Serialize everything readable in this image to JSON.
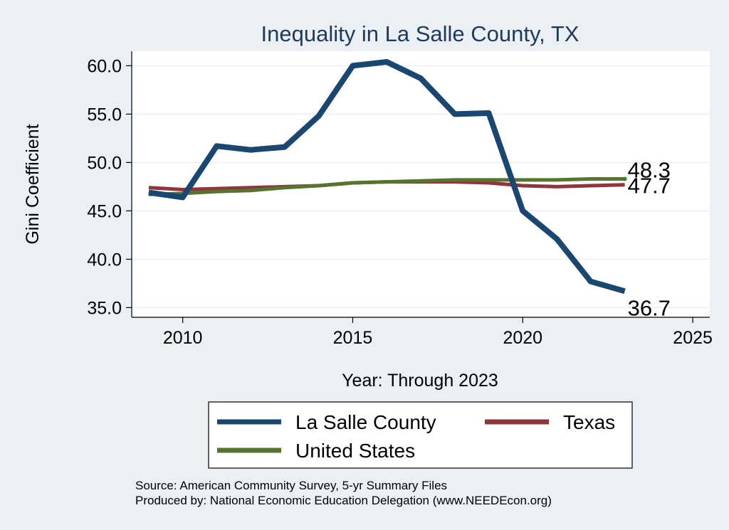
{
  "chart_data": {
    "type": "line",
    "title": "Inequality in La Salle County, TX",
    "xlabel": "Year: Through 2023",
    "ylabel": "Gini Coefficient",
    "xlim": [
      2008.5,
      2025.5
    ],
    "ylim": [
      34.0,
      61.5
    ],
    "xticks": [
      2010,
      2015,
      2020,
      2025
    ],
    "xtick_labels": [
      "2010",
      "2015",
      "2020",
      "2025"
    ],
    "yticks": [
      35,
      40,
      45,
      50,
      55,
      60
    ],
    "ytick_labels": [
      "35.0",
      "40.0",
      "45.0",
      "50.0",
      "55.0",
      "60.0"
    ],
    "grid": true,
    "legend_position": "bottom",
    "x": [
      2009,
      2010,
      2011,
      2012,
      2013,
      2014,
      2015,
      2016,
      2017,
      2018,
      2019,
      2020,
      2021,
      2022,
      2023
    ],
    "series": [
      {
        "name": "La Salle County",
        "color": "#1a476f",
        "values": [
          46.9,
          46.4,
          51.7,
          51.3,
          51.6,
          54.8,
          60.0,
          60.4,
          58.7,
          55.0,
          55.1,
          45.0,
          42.1,
          37.7,
          36.7
        ],
        "end_label": "36.7"
      },
      {
        "name": "Texas",
        "color": "#90353b",
        "values": [
          47.4,
          47.2,
          47.3,
          47.4,
          47.5,
          47.6,
          47.9,
          48.0,
          48.0,
          48.0,
          47.9,
          47.6,
          47.5,
          47.6,
          47.7
        ],
        "end_label": "47.7"
      },
      {
        "name": "United States",
        "color": "#55752f",
        "values": [
          46.7,
          46.8,
          47.0,
          47.1,
          47.4,
          47.6,
          47.9,
          48.0,
          48.1,
          48.2,
          48.2,
          48.2,
          48.2,
          48.3,
          48.3
        ],
        "end_label": "48.3"
      }
    ]
  },
  "footer": {
    "source": "Source: American Community Survey, 5-yr Summary Files",
    "producer": "Produced by: National Economic Education Delegation (www.NEEDEcon.org)"
  }
}
